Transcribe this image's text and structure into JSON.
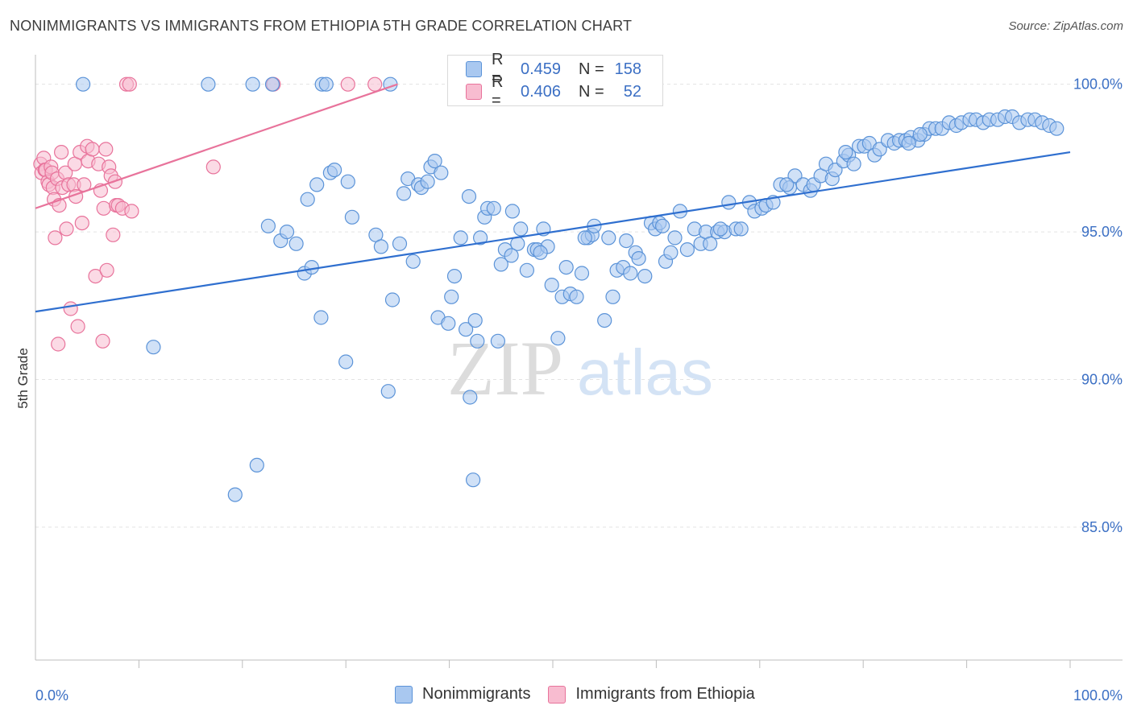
{
  "title": "NONIMMIGRANTS VS IMMIGRANTS FROM ETHIOPIA 5TH GRADE CORRELATION CHART",
  "source": "Source: ZipAtlas.com",
  "watermark": {
    "zip": "ZIP",
    "atlas": "atlas"
  },
  "legend": {
    "rows": [
      {
        "r_label": "R =",
        "r_value": "0.459",
        "n_label": "N =",
        "n_value": "158"
      },
      {
        "r_label": "R =",
        "r_value": "0.406",
        "n_label": "N =",
        "n_value": "52"
      }
    ]
  },
  "colors": {
    "blue_fill": "#a9c8f0",
    "blue_stroke": "#5b93d8",
    "blue_line": "#2f6fcf",
    "pink_fill": "#f8bcd0",
    "pink_stroke": "#e8739b",
    "pink_line": "#e8739b",
    "tick_label": "#3b6fc4",
    "grid": "#e3e3e3"
  },
  "chart_data": {
    "type": "scatter",
    "title": "NONIMMIGRANTS VS IMMIGRANTS FROM ETHIOPIA 5TH GRADE CORRELATION CHART",
    "xlabel": "",
    "ylabel": "5th Grade",
    "xlim": [
      0,
      100
    ],
    "ylim": [
      80.5,
      101
    ],
    "x_tick_labels": [
      "0.0%",
      "100.0%"
    ],
    "y_ticks": [
      85,
      90,
      95,
      100
    ],
    "y_tick_labels": [
      "85.0%",
      "90.0%",
      "95.0%",
      "100.0%"
    ],
    "grid": true,
    "legend_position": "top-center",
    "series": [
      {
        "name": "Nonimmigrants",
        "color": "#5b93d8",
        "trend": {
          "x": [
            0,
            100
          ],
          "y": [
            92.3,
            97.7
          ]
        },
        "points": [
          [
            4.6,
            100
          ],
          [
            16.7,
            100
          ],
          [
            21.0,
            100
          ],
          [
            22.9,
            100
          ],
          [
            27.7,
            100
          ],
          [
            28.1,
            100
          ],
          [
            34.3,
            100
          ],
          [
            11.4,
            91.1
          ],
          [
            19.3,
            86.1
          ],
          [
            21.4,
            87.1
          ],
          [
            22.5,
            95.2
          ],
          [
            23.7,
            94.7
          ],
          [
            24.3,
            95.0
          ],
          [
            25.2,
            94.6
          ],
          [
            26.0,
            93.6
          ],
          [
            26.3,
            96.1
          ],
          [
            26.7,
            93.8
          ],
          [
            27.2,
            96.6
          ],
          [
            27.6,
            92.1
          ],
          [
            28.5,
            97.0
          ],
          [
            28.9,
            97.1
          ],
          [
            30.0,
            90.6
          ],
          [
            30.2,
            96.7
          ],
          [
            30.6,
            95.5
          ],
          [
            32.9,
            94.9
          ],
          [
            33.4,
            94.5
          ],
          [
            34.1,
            89.6
          ],
          [
            34.5,
            92.7
          ],
          [
            35.2,
            94.6
          ],
          [
            35.6,
            96.3
          ],
          [
            36.0,
            96.8
          ],
          [
            36.5,
            94.0
          ],
          [
            37.0,
            96.6
          ],
          [
            37.3,
            96.5
          ],
          [
            38.2,
            97.2
          ],
          [
            38.6,
            97.4
          ],
          [
            38.9,
            92.1
          ],
          [
            39.2,
            97.0
          ],
          [
            39.9,
            91.9
          ],
          [
            40.2,
            92.8
          ],
          [
            40.5,
            93.5
          ],
          [
            41.1,
            94.8
          ],
          [
            41.6,
            91.7
          ],
          [
            41.9,
            96.2
          ],
          [
            42.0,
            89.4
          ],
          [
            42.3,
            86.6
          ],
          [
            42.7,
            91.3
          ],
          [
            43.0,
            94.8
          ],
          [
            43.4,
            95.5
          ],
          [
            43.7,
            95.8
          ],
          [
            44.3,
            95.8
          ],
          [
            44.7,
            91.3
          ],
          [
            45.0,
            93.9
          ],
          [
            45.4,
            94.4
          ],
          [
            46.1,
            95.7
          ],
          [
            46.6,
            94.6
          ],
          [
            46.9,
            95.1
          ],
          [
            47.5,
            93.7
          ],
          [
            48.2,
            94.4
          ],
          [
            48.5,
            94.4
          ],
          [
            49.1,
            95.1
          ],
          [
            49.5,
            94.5
          ],
          [
            49.9,
            93.2
          ],
          [
            50.5,
            91.4
          ],
          [
            50.9,
            92.8
          ],
          [
            51.3,
            93.8
          ],
          [
            51.7,
            92.9
          ],
          [
            52.3,
            92.8
          ],
          [
            52.8,
            93.6
          ],
          [
            53.4,
            94.8
          ],
          [
            53.8,
            94.9
          ],
          [
            54.0,
            95.2
          ],
          [
            55.0,
            92.0
          ],
          [
            55.4,
            94.8
          ],
          [
            55.8,
            92.8
          ],
          [
            56.2,
            93.7
          ],
          [
            56.8,
            93.8
          ],
          [
            57.5,
            93.6
          ],
          [
            58.0,
            94.3
          ],
          [
            58.3,
            94.1
          ],
          [
            58.9,
            93.5
          ],
          [
            59.5,
            95.3
          ],
          [
            59.9,
            95.1
          ],
          [
            60.3,
            95.3
          ],
          [
            60.9,
            94.0
          ],
          [
            61.4,
            94.3
          ],
          [
            61.8,
            94.8
          ],
          [
            62.3,
            95.7
          ],
          [
            63.0,
            94.4
          ],
          [
            63.7,
            95.1
          ],
          [
            64.3,
            94.6
          ],
          [
            64.8,
            95.0
          ],
          [
            65.2,
            94.6
          ],
          [
            65.9,
            95.0
          ],
          [
            66.6,
            95.0
          ],
          [
            67.0,
            96.0
          ],
          [
            67.7,
            95.1
          ],
          [
            68.2,
            95.1
          ],
          [
            69.0,
            96.0
          ],
          [
            69.5,
            95.7
          ],
          [
            70.2,
            95.8
          ],
          [
            70.6,
            95.9
          ],
          [
            71.3,
            96.0
          ],
          [
            72.0,
            96.6
          ],
          [
            72.9,
            96.5
          ],
          [
            73.4,
            96.9
          ],
          [
            74.2,
            96.6
          ],
          [
            74.9,
            96.4
          ],
          [
            75.2,
            96.6
          ],
          [
            75.9,
            96.9
          ],
          [
            76.4,
            97.3
          ],
          [
            77.0,
            96.8
          ],
          [
            77.3,
            97.1
          ],
          [
            78.1,
            97.4
          ],
          [
            78.6,
            97.6
          ],
          [
            79.1,
            97.3
          ],
          [
            79.6,
            97.9
          ],
          [
            80.1,
            97.9
          ],
          [
            80.6,
            98.0
          ],
          [
            81.1,
            97.6
          ],
          [
            81.6,
            97.8
          ],
          [
            82.4,
            98.1
          ],
          [
            83.0,
            98.0
          ],
          [
            83.5,
            98.1
          ],
          [
            84.1,
            98.1
          ],
          [
            84.6,
            98.2
          ],
          [
            85.3,
            98.1
          ],
          [
            85.9,
            98.3
          ],
          [
            86.4,
            98.5
          ],
          [
            87.0,
            98.5
          ],
          [
            87.6,
            98.5
          ],
          [
            88.3,
            98.7
          ],
          [
            89.0,
            98.6
          ],
          [
            89.5,
            98.7
          ],
          [
            90.3,
            98.8
          ],
          [
            90.9,
            98.8
          ],
          [
            91.6,
            98.7
          ],
          [
            92.2,
            98.8
          ],
          [
            93.0,
            98.8
          ],
          [
            93.7,
            98.9
          ],
          [
            94.4,
            98.9
          ],
          [
            95.1,
            98.7
          ],
          [
            95.9,
            98.8
          ],
          [
            96.6,
            98.8
          ],
          [
            97.3,
            98.7
          ],
          [
            98.0,
            98.6
          ],
          [
            98.7,
            98.5
          ],
          [
            85.5,
            98.3
          ],
          [
            84.4,
            98.0
          ],
          [
            78.3,
            97.7
          ],
          [
            72.6,
            96.6
          ],
          [
            66.2,
            95.1
          ],
          [
            60.6,
            95.2
          ],
          [
            57.1,
            94.7
          ],
          [
            53.1,
            94.8
          ],
          [
            48.8,
            94.3
          ],
          [
            46.0,
            94.2
          ],
          [
            42.5,
            92.0
          ],
          [
            37.9,
            96.7
          ]
        ]
      },
      {
        "name": "Immigrants from Ethiopia",
        "color": "#e8739b",
        "trend": {
          "x": [
            0,
            35
          ],
          "y": [
            95.8,
            100
          ]
        },
        "points": [
          [
            8.8,
            100
          ],
          [
            9.1,
            100
          ],
          [
            23.0,
            100
          ],
          [
            30.2,
            100
          ],
          [
            32.8,
            100
          ],
          [
            0.5,
            97.3
          ],
          [
            0.6,
            97.0
          ],
          [
            0.8,
            97.5
          ],
          [
            0.9,
            97.1
          ],
          [
            1.0,
            97.1
          ],
          [
            1.2,
            96.7
          ],
          [
            1.3,
            96.6
          ],
          [
            1.5,
            97.2
          ],
          [
            1.6,
            97.0
          ],
          [
            1.7,
            96.5
          ],
          [
            1.8,
            96.1
          ],
          [
            1.9,
            94.8
          ],
          [
            2.1,
            96.8
          ],
          [
            2.2,
            91.2
          ],
          [
            2.3,
            95.9
          ],
          [
            2.5,
            97.7
          ],
          [
            2.6,
            96.5
          ],
          [
            2.9,
            97.0
          ],
          [
            3.0,
            95.1
          ],
          [
            3.2,
            96.6
          ],
          [
            3.4,
            92.4
          ],
          [
            3.7,
            96.6
          ],
          [
            3.8,
            97.3
          ],
          [
            3.9,
            96.2
          ],
          [
            4.1,
            91.8
          ],
          [
            4.3,
            97.7
          ],
          [
            4.5,
            95.3
          ],
          [
            4.7,
            96.6
          ],
          [
            5.0,
            97.9
          ],
          [
            5.1,
            97.4
          ],
          [
            5.5,
            97.8
          ],
          [
            5.8,
            93.5
          ],
          [
            6.1,
            97.3
          ],
          [
            6.3,
            96.4
          ],
          [
            6.5,
            91.3
          ],
          [
            6.6,
            95.8
          ],
          [
            6.8,
            97.8
          ],
          [
            6.9,
            93.7
          ],
          [
            7.1,
            97.2
          ],
          [
            7.3,
            96.9
          ],
          [
            7.5,
            94.9
          ],
          [
            7.7,
            96.7
          ],
          [
            7.8,
            95.9
          ],
          [
            8.0,
            95.9
          ],
          [
            8.4,
            95.8
          ],
          [
            9.3,
            95.7
          ],
          [
            17.2,
            97.2
          ]
        ]
      }
    ]
  },
  "bottom_legend": [
    "Nonimmigrants",
    "Immigrants from Ethiopia"
  ]
}
